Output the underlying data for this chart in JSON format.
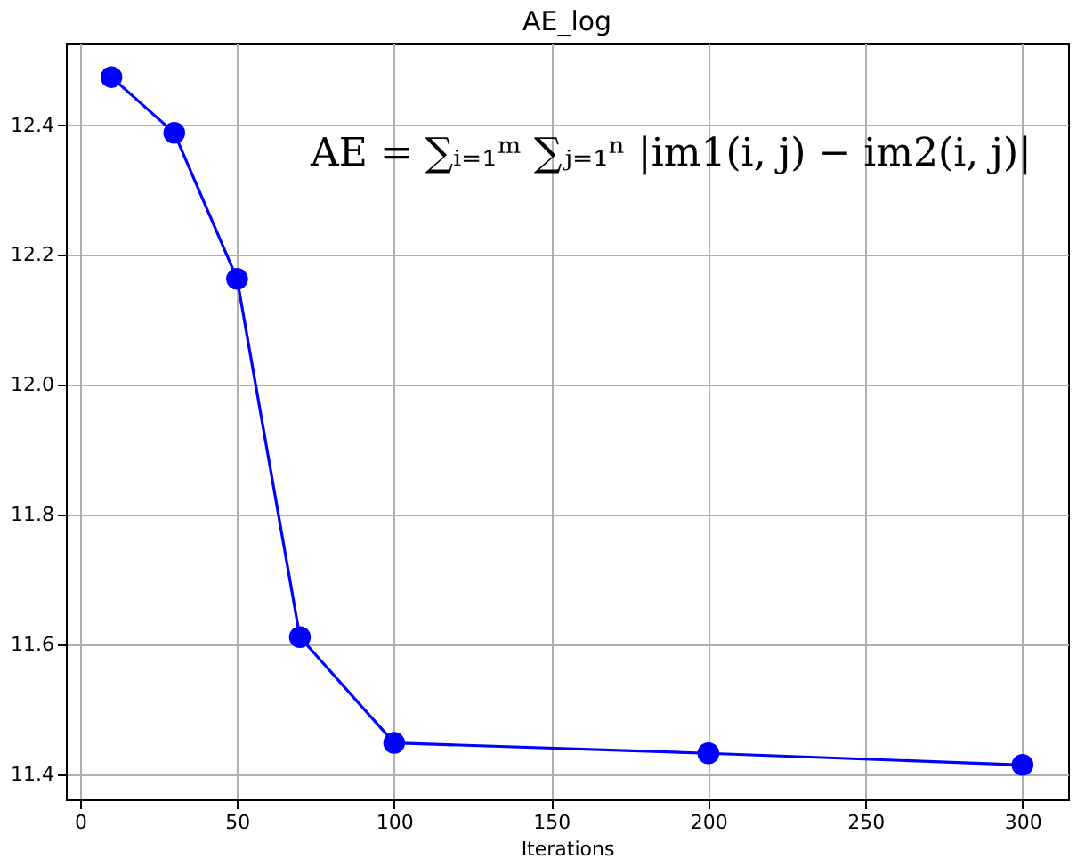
{
  "chart_data": {
    "type": "line",
    "title": "AE_log",
    "xlabel": "Iterations",
    "x": [
      10,
      30,
      50,
      70,
      100,
      200,
      300
    ],
    "series": [
      {
        "color": "#0000ff",
        "values": [
          12.474,
          12.388,
          12.163,
          11.611,
          11.448,
          11.432,
          11.414
        ]
      }
    ],
    "xlim": [
      -4.5,
      314.5
    ],
    "ylim": [
      11.361,
      12.527
    ],
    "xticks": [
      0,
      50,
      100,
      150,
      200,
      250,
      300
    ],
    "yticks": [
      11.4,
      11.6,
      11.8,
      {
        "value": 12.0,
        "label": "12.0"
      },
      12.2,
      12.4
    ],
    "grid": true,
    "marker": "circle",
    "line_style": "solid",
    "annotations": [
      "AE = ∑ᵢ₌₁ᵐ ∑ⱼ₌₁ⁿ |im1(i, j) − im2(i, j)|"
    ]
  }
}
